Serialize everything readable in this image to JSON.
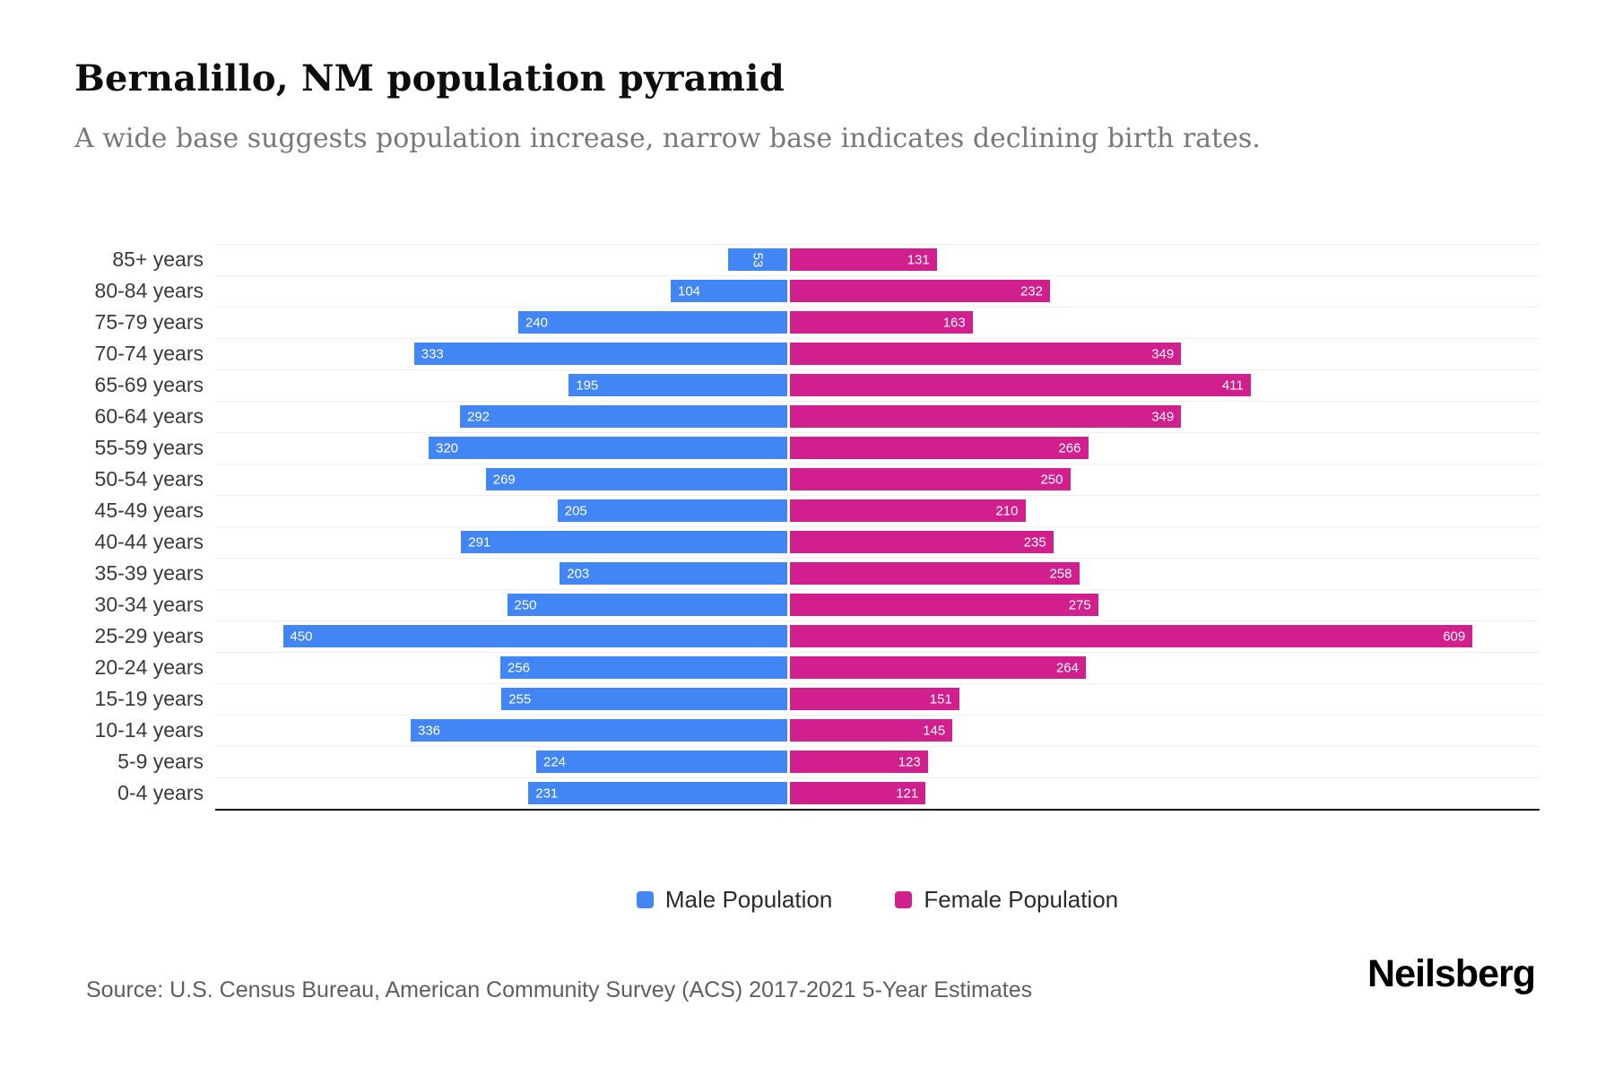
{
  "header": {
    "title": "Bernalillo, NM population pyramid",
    "subtitle": "A wide base suggests population increase, narrow base indicates declining birth rates."
  },
  "chart_data": {
    "type": "bar",
    "subtype": "population-pyramid",
    "orientation": "horizontal",
    "grid": "horizontal-light",
    "legend_position": "bottom-center",
    "value_labels": "inside-bar-ends",
    "categories": [
      "85+ years",
      "80-84 years",
      "75-79 years",
      "70-74 years",
      "65-69 years",
      "60-64 years",
      "55-59 years",
      "50-54 years",
      "45-49 years",
      "40-44 years",
      "35-39 years",
      "30-34 years",
      "25-29 years",
      "20-24 years",
      "15-19 years",
      "10-14 years",
      "5-9 years",
      "0-4 years"
    ],
    "series": [
      {
        "name": "Male Population",
        "side": "left",
        "color": "#4285F4",
        "values": [
          53,
          104,
          240,
          333,
          195,
          292,
          320,
          269,
          205,
          291,
          203,
          250,
          450,
          256,
          255,
          336,
          224,
          231
        ]
      },
      {
        "name": "Female Population",
        "side": "right",
        "color": "#D11F8D",
        "values": [
          131,
          232,
          163,
          349,
          411,
          349,
          266,
          250,
          210,
          235,
          258,
          275,
          609,
          264,
          151,
          145,
          123,
          121
        ]
      }
    ],
    "xlim": [
      0,
      650
    ]
  },
  "footer": {
    "source": "Source: U.S. Census Bureau, American Community Survey (ACS) 2017-2021 5-Year Estimates",
    "brand": "Neilsberg"
  }
}
